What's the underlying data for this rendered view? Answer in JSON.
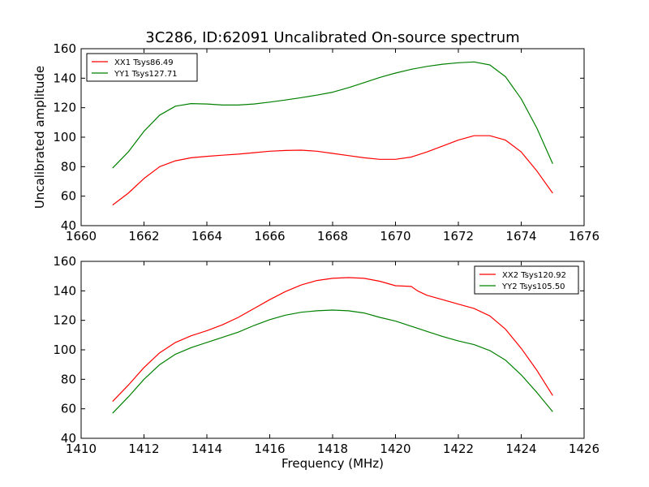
{
  "chart_data": [
    {
      "type": "line",
      "title": "3C286, ID:62091 Uncalibrated On-source spectrum",
      "xlabel": "",
      "ylabel": "Uncalibrated amplitude",
      "xlim": [
        1660,
        1676
      ],
      "ylim": [
        40,
        160
      ],
      "xticks": [
        1660,
        1662,
        1664,
        1666,
        1668,
        1670,
        1672,
        1674,
        1676
      ],
      "yticks": [
        40,
        60,
        80,
        100,
        120,
        140,
        160
      ],
      "legend_position": "top-left",
      "grid": false,
      "series": [
        {
          "name": "XX1 Tsys86.49",
          "color": "#ff0000",
          "x": [
            1661.0,
            1661.5,
            1662.0,
            1662.5,
            1663.0,
            1663.5,
            1664.0,
            1664.5,
            1665.0,
            1665.5,
            1666.0,
            1666.5,
            1667.0,
            1667.5,
            1668.0,
            1668.5,
            1669.0,
            1669.5,
            1670.0,
            1670.5,
            1671.0,
            1671.5,
            1672.0,
            1672.5,
            1673.0,
            1673.5,
            1674.0,
            1674.5,
            1675.0
          ],
          "y": [
            54,
            62,
            72,
            80,
            84,
            86,
            87,
            87.8,
            88.5,
            89.5,
            90.5,
            91,
            91.2,
            90.5,
            89,
            87.5,
            86,
            85,
            85,
            86.5,
            90,
            94,
            98,
            101,
            101,
            98,
            90,
            77,
            62
          ]
        },
        {
          "name": "YY1 Tsys127.71",
          "color": "#008000",
          "x": [
            1661.0,
            1661.5,
            1662.0,
            1662.5,
            1663.0,
            1663.5,
            1664.0,
            1664.5,
            1665.0,
            1665.5,
            1666.0,
            1666.5,
            1667.0,
            1667.5,
            1668.0,
            1668.5,
            1669.0,
            1669.5,
            1670.0,
            1670.5,
            1671.0,
            1671.5,
            1672.0,
            1672.5,
            1673.0,
            1673.5,
            1674.0,
            1674.5,
            1675.0
          ],
          "y": [
            79,
            90,
            104,
            115,
            121,
            122.8,
            122.5,
            121.8,
            121.8,
            122.5,
            123.8,
            125.2,
            126.8,
            128.5,
            130.5,
            133.5,
            137,
            140.5,
            143.5,
            146,
            148,
            149.5,
            150.5,
            151,
            149,
            141,
            126,
            106,
            82
          ]
        }
      ]
    },
    {
      "type": "line",
      "title": "",
      "xlabel": "Frequency (MHz)",
      "ylabel": "",
      "xlim": [
        1410,
        1426
      ],
      "ylim": [
        40,
        160
      ],
      "xticks": [
        1410,
        1412,
        1414,
        1416,
        1418,
        1420,
        1422,
        1424,
        1426
      ],
      "yticks": [
        40,
        60,
        80,
        100,
        120,
        140,
        160
      ],
      "legend_position": "top-right",
      "grid": false,
      "series": [
        {
          "name": "XX2 Tsys120.92",
          "color": "#ff0000",
          "x": [
            1411.0,
            1411.5,
            1412.0,
            1412.5,
            1413.0,
            1413.5,
            1414.0,
            1414.5,
            1415.0,
            1415.5,
            1416.0,
            1416.5,
            1417.0,
            1417.5,
            1418.0,
            1418.5,
            1419.0,
            1419.5,
            1420.0,
            1420.5,
            1420.7,
            1421.0,
            1421.5,
            1422.0,
            1422.5,
            1423.0,
            1423.5,
            1424.0,
            1424.5,
            1425.0
          ],
          "y": [
            65,
            76,
            88,
            98,
            105,
            109.5,
            113,
            117,
            122,
            128,
            134,
            139.5,
            144,
            147,
            148.5,
            149,
            148.5,
            146.5,
            143.5,
            143,
            140,
            137,
            134,
            131,
            128,
            123,
            114,
            101,
            86,
            69
          ]
        },
        {
          "name": "YY2 Tsys105.50",
          "color": "#008000",
          "x": [
            1411.0,
            1411.5,
            1412.0,
            1412.5,
            1413.0,
            1413.5,
            1414.0,
            1414.5,
            1415.0,
            1415.5,
            1416.0,
            1416.5,
            1417.0,
            1417.5,
            1418.0,
            1418.5,
            1419.0,
            1419.5,
            1420.0,
            1420.5,
            1421.0,
            1421.5,
            1422.0,
            1422.5,
            1423.0,
            1423.5,
            1424.0,
            1424.5,
            1425.0
          ],
          "y": [
            57,
            68,
            80,
            90,
            97,
            101.5,
            105,
            108.5,
            112,
            116.5,
            120.5,
            123.5,
            125.5,
            126.5,
            127,
            126.5,
            125,
            122,
            119.5,
            116,
            112.5,
            109,
            106,
            103.5,
            99.5,
            93,
            83,
            71,
            58
          ]
        }
      ]
    }
  ]
}
